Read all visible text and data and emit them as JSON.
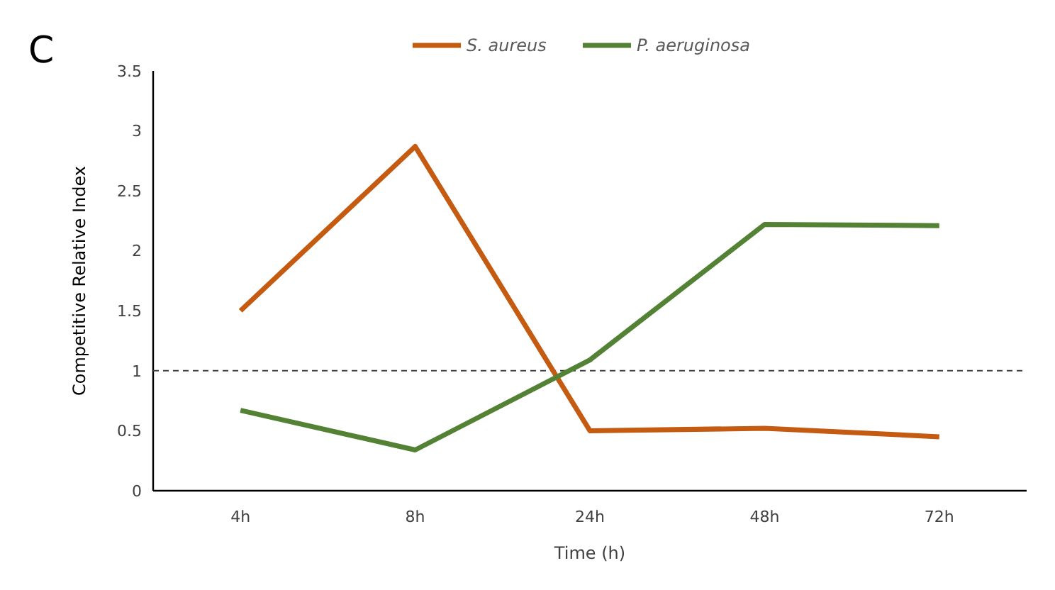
{
  "chart_data": {
    "type": "line",
    "xlabel": "Time (h)",
    "ylabel": "Competitive Relative Index",
    "annotations": [
      "C"
    ],
    "categories": [
      "4h",
      "8h",
      "24h",
      "48h",
      "72h"
    ],
    "series": [
      {
        "name": "S. aureus",
        "color": "#c55a11",
        "values": [
          1.5,
          2.87,
          0.5,
          0.52,
          0.45
        ]
      },
      {
        "name": "P. aeruginosa",
        "color": "#548235",
        "values": [
          0.67,
          0.34,
          1.09,
          2.22,
          2.21
        ]
      }
    ],
    "ylim": [
      0,
      3.5
    ],
    "yticks": [
      0,
      0.5,
      1,
      1.5,
      2,
      2.5,
      3,
      3.5
    ],
    "grid": false,
    "legend": "top",
    "marker": "none",
    "line_style": "solid",
    "ref_lines": [
      {
        "axis": "y",
        "value": 1,
        "color": "#404040",
        "line_style": "dashed"
      }
    ]
  }
}
